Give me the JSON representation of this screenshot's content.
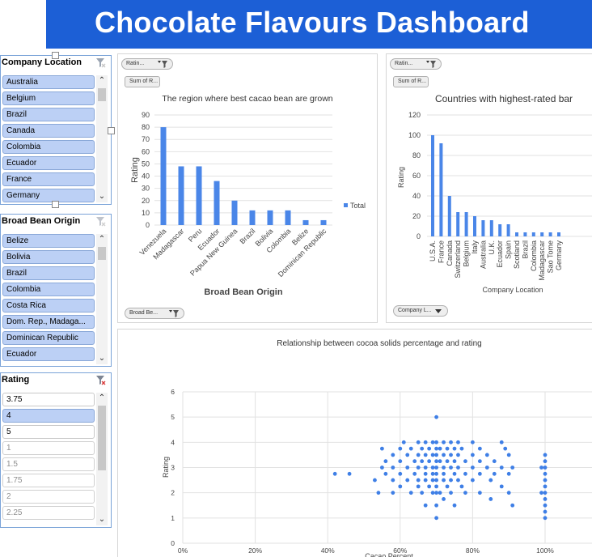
{
  "dashboard": {
    "title": "Chocolate Flavours Dashboard"
  },
  "slicers": [
    {
      "title": "Company Location",
      "items": [
        {
          "label": "Australia",
          "state": "sel"
        },
        {
          "label": "Belgium",
          "state": "sel"
        },
        {
          "label": "Brazil",
          "state": "sel"
        },
        {
          "label": "Canada",
          "state": "sel"
        },
        {
          "label": "Colombia",
          "state": "sel"
        },
        {
          "label": "Ecuador",
          "state": "sel"
        },
        {
          "label": "France",
          "state": "sel"
        },
        {
          "label": "Germany",
          "state": "sel"
        }
      ]
    },
    {
      "title": "Broad Bean Origin",
      "items": [
        {
          "label": "Belize",
          "state": "sel"
        },
        {
          "label": "Bolivia",
          "state": "sel"
        },
        {
          "label": "Brazil",
          "state": "sel"
        },
        {
          "label": "Colombia",
          "state": "sel"
        },
        {
          "label": "Costa Rica",
          "state": "sel"
        },
        {
          "label": "Dom. Rep., Madaga...",
          "state": "sel"
        },
        {
          "label": "Dominican Republic",
          "state": "sel"
        },
        {
          "label": "Ecuador",
          "state": "sel"
        }
      ]
    },
    {
      "title": "Rating",
      "items": [
        {
          "label": "3.75",
          "state": "white"
        },
        {
          "label": "4",
          "state": "sel"
        },
        {
          "label": "5",
          "state": "white"
        },
        {
          "label": "1",
          "state": "off"
        },
        {
          "label": "1.5",
          "state": "off"
        },
        {
          "label": "1.75",
          "state": "off"
        },
        {
          "label": "2",
          "state": "off"
        },
        {
          "label": "2.25",
          "state": "off"
        }
      ]
    }
  ],
  "chart1_controls": {
    "filter1": "Ratin...",
    "field": "Sum of R...",
    "axis_filter": "Broad Be..."
  },
  "chart2_controls": {
    "filter1": "Ratin...",
    "field": "Sum of R...",
    "axis_filter": "Company L..."
  },
  "icons": {
    "filter": "funnel-icon",
    "clear": "clear-filter-icon",
    "dropdown": "chevron-down-icon",
    "scroll_up": "scroll-up-icon",
    "scroll_down": "scroll-down-icon"
  },
  "colors": {
    "accent": "#1c5fd6",
    "bar": "#4a86e8",
    "point": "#3f7fe6",
    "selected_item": "#bcd0f5"
  },
  "chart_data": [
    {
      "type": "bar",
      "title": "The region where best cacao bean are grown",
      "xlabel": "Broad Bean Origin",
      "ylabel": "Rating",
      "categories": [
        "Venezuela",
        "Madagascar",
        "Peru",
        "Ecuador",
        "Papua New Guinea",
        "Brazil",
        "Bolivia",
        "Colombia",
        "Belize",
        "Dominican Republic"
      ],
      "series": [
        {
          "name": "Total",
          "values": [
            80,
            48,
            48,
            36,
            20,
            12,
            12,
            12,
            4,
            4
          ]
        }
      ],
      "ylim": [
        0,
        90
      ],
      "yticks": [
        0,
        10,
        20,
        30,
        40,
        50,
        60,
        70,
        80,
        90
      ],
      "legend": "right",
      "grid": true
    },
    {
      "type": "bar",
      "title": "Countries with highest-rated bar",
      "xlabel": "Company Location",
      "ylabel": "Rating",
      "categories": [
        "U.S.A.",
        "France",
        "Canada",
        "Switzerland",
        "Belgium",
        "Italy",
        "Australia",
        "U.K.",
        "Ecuador",
        "Spain",
        "Scotland",
        "Brazil",
        "Colombia",
        "Madagascar",
        "Sao Tome",
        "Germany"
      ],
      "values": [
        100,
        92,
        40,
        24,
        24,
        20,
        16,
        16,
        12,
        12,
        4,
        4,
        4,
        4,
        4,
        4
      ],
      "ylim": [
        0,
        120
      ],
      "yticks": [
        0,
        20,
        40,
        60,
        80,
        100,
        120
      ],
      "grid": true
    },
    {
      "type": "scatter",
      "title": "Relationship between cocoa solids percentage and rating",
      "xlabel": "Cacao Percent",
      "ylabel": "Rating",
      "xlim": [
        0,
        1.0
      ],
      "ylim": [
        0,
        6
      ],
      "xtick_labels": [
        "0%",
        "20%",
        "40%",
        "60%",
        "80%",
        "100%"
      ],
      "yticks": [
        0,
        1,
        2,
        3,
        4,
        5,
        6
      ],
      "grid": true,
      "points": [
        [
          0.42,
          2.75
        ],
        [
          0.46,
          2.75
        ],
        [
          0.53,
          2.5
        ],
        [
          0.55,
          3.75
        ],
        [
          0.55,
          3.0
        ],
        [
          0.54,
          2.0
        ],
        [
          0.56,
          3.25
        ],
        [
          0.56,
          2.75
        ],
        [
          0.58,
          3.5
        ],
        [
          0.58,
          3.0
        ],
        [
          0.58,
          2.5
        ],
        [
          0.58,
          2.0
        ],
        [
          0.6,
          3.75
        ],
        [
          0.6,
          3.25
        ],
        [
          0.6,
          2.75
        ],
        [
          0.6,
          2.25
        ],
        [
          0.61,
          4.0
        ],
        [
          0.62,
          3.5
        ],
        [
          0.62,
          3.0
        ],
        [
          0.62,
          2.5
        ],
        [
          0.63,
          3.75
        ],
        [
          0.63,
          2.0
        ],
        [
          0.64,
          3.25
        ],
        [
          0.64,
          2.75
        ],
        [
          0.65,
          4.0
        ],
        [
          0.65,
          3.5
        ],
        [
          0.65,
          3.0
        ],
        [
          0.65,
          2.5
        ],
        [
          0.65,
          2.25
        ],
        [
          0.66,
          3.75
        ],
        [
          0.66,
          3.25
        ],
        [
          0.66,
          2.0
        ],
        [
          0.67,
          4.0
        ],
        [
          0.67,
          3.5
        ],
        [
          0.67,
          3.0
        ],
        [
          0.67,
          2.75
        ],
        [
          0.67,
          2.5
        ],
        [
          0.67,
          1.5
        ],
        [
          0.68,
          3.75
        ],
        [
          0.68,
          3.25
        ],
        [
          0.68,
          2.25
        ],
        [
          0.69,
          4.0
        ],
        [
          0.69,
          3.5
        ],
        [
          0.69,
          3.0
        ],
        [
          0.69,
          2.75
        ],
        [
          0.69,
          2.5
        ],
        [
          0.69,
          2.0
        ],
        [
          0.7,
          5.0
        ],
        [
          0.7,
          4.0
        ],
        [
          0.7,
          3.75
        ],
        [
          0.7,
          3.5
        ],
        [
          0.7,
          3.25
        ],
        [
          0.7,
          3.0
        ],
        [
          0.7,
          2.75
        ],
        [
          0.7,
          2.5
        ],
        [
          0.7,
          2.25
        ],
        [
          0.7,
          2.0
        ],
        [
          0.7,
          1.5
        ],
        [
          0.7,
          1.0
        ],
        [
          0.71,
          3.75
        ],
        [
          0.71,
          3.25
        ],
        [
          0.71,
          2.0
        ],
        [
          0.72,
          4.0
        ],
        [
          0.72,
          3.5
        ],
        [
          0.72,
          3.0
        ],
        [
          0.72,
          2.75
        ],
        [
          0.72,
          2.5
        ],
        [
          0.72,
          1.75
        ],
        [
          0.73,
          3.75
        ],
        [
          0.73,
          3.25
        ],
        [
          0.73,
          2.25
        ],
        [
          0.74,
          4.0
        ],
        [
          0.74,
          3.5
        ],
        [
          0.74,
          3.0
        ],
        [
          0.74,
          2.5
        ],
        [
          0.74,
          2.0
        ],
        [
          0.75,
          3.75
        ],
        [
          0.75,
          3.25
        ],
        [
          0.75,
          2.75
        ],
        [
          0.75,
          1.5
        ],
        [
          0.76,
          4.0
        ],
        [
          0.76,
          3.5
        ],
        [
          0.76,
          3.0
        ],
        [
          0.76,
          2.5
        ],
        [
          0.77,
          3.75
        ],
        [
          0.77,
          2.25
        ],
        [
          0.78,
          3.25
        ],
        [
          0.78,
          2.75
        ],
        [
          0.78,
          2.0
        ],
        [
          0.8,
          4.0
        ],
        [
          0.8,
          3.5
        ],
        [
          0.8,
          3.0
        ],
        [
          0.8,
          2.5
        ],
        [
          0.82,
          3.75
        ],
        [
          0.82,
          3.25
        ],
        [
          0.82,
          2.75
        ],
        [
          0.82,
          2.0
        ],
        [
          0.84,
          3.5
        ],
        [
          0.84,
          3.0
        ],
        [
          0.85,
          2.5
        ],
        [
          0.85,
          1.75
        ],
        [
          0.86,
          3.25
        ],
        [
          0.86,
          2.75
        ],
        [
          0.88,
          4.0
        ],
        [
          0.88,
          3.0
        ],
        [
          0.88,
          2.25
        ],
        [
          0.89,
          3.75
        ],
        [
          0.9,
          3.5
        ],
        [
          0.9,
          2.75
        ],
        [
          0.9,
          2.0
        ],
        [
          0.91,
          1.5
        ],
        [
          0.91,
          3.0
        ],
        [
          1.0,
          3.5
        ],
        [
          1.0,
          3.25
        ],
        [
          1.0,
          3.0
        ],
        [
          1.0,
          2.75
        ],
        [
          1.0,
          2.5
        ],
        [
          1.0,
          2.25
        ],
        [
          1.0,
          2.0
        ],
        [
          1.0,
          1.75
        ],
        [
          1.0,
          1.5
        ],
        [
          1.0,
          1.0
        ],
        [
          1.0,
          1.25
        ],
        [
          0.99,
          3.0
        ],
        [
          0.99,
          2.0
        ]
      ]
    }
  ]
}
